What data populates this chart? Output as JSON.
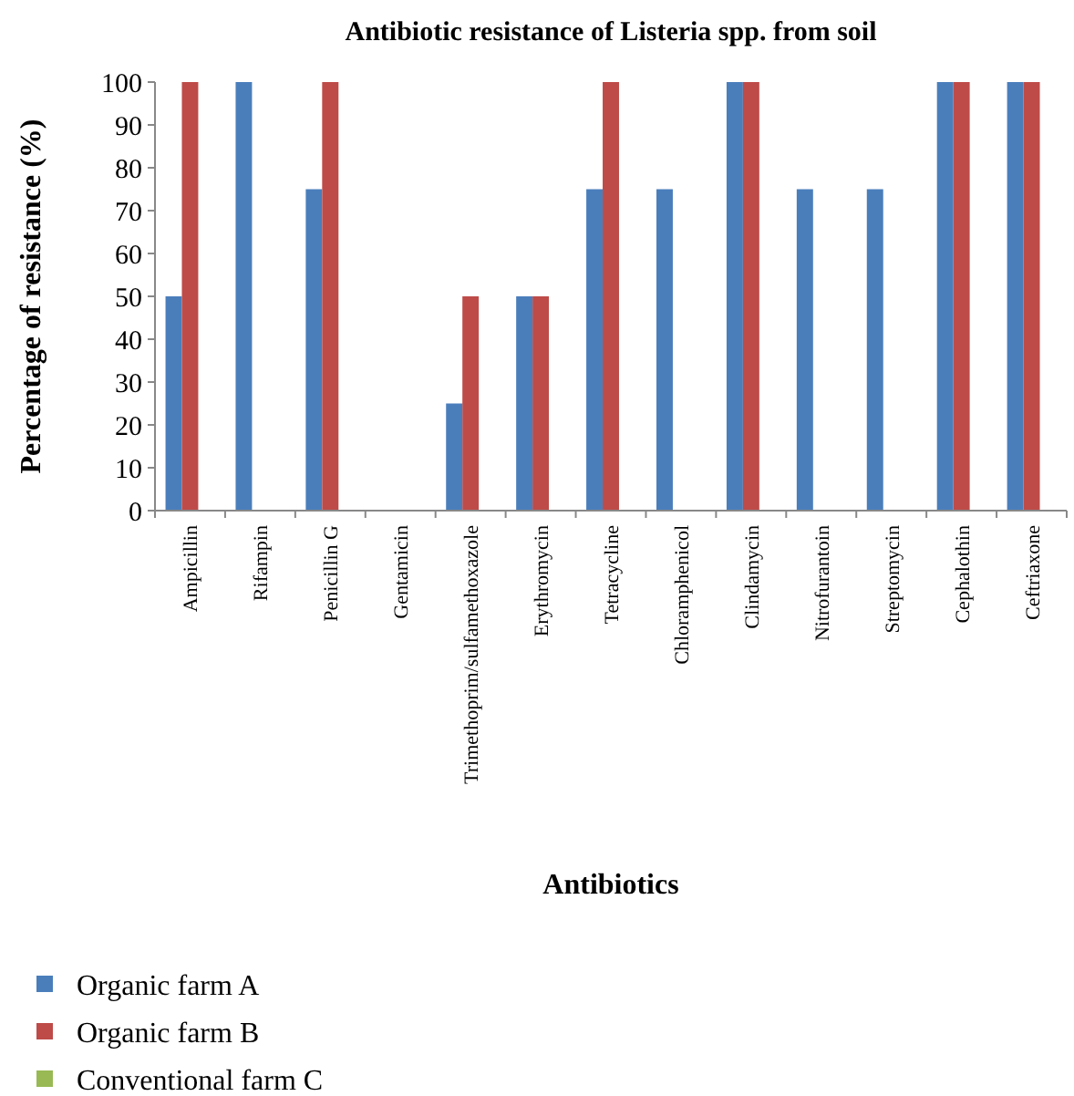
{
  "chart_data": {
    "type": "bar",
    "title": "Antibiotic resistance of Listeria spp. from soil",
    "xlabel": "Antibiotics",
    "ylabel": "Percentage of resistance (%)",
    "categories": [
      "Ampicillin",
      "Rifampin",
      "Penicillin G",
      "Gentamicin",
      "Trimethoprim/sulfamethoxazole",
      "Erythromycin",
      "Tetracycline",
      "Chloramphenicol",
      "Clindamycin",
      "Nitrofurantoin",
      "Streptomycin",
      "Cephalothin",
      "Ceftriaxone"
    ],
    "series": [
      {
        "name": "Organic farm A",
        "color": "#4a7ebb",
        "values": [
          50,
          100,
          75,
          0,
          25,
          50,
          75,
          75,
          100,
          75,
          75,
          100,
          100
        ]
      },
      {
        "name": "Organic farm B",
        "color": "#be4b48",
        "values": [
          100,
          0,
          100,
          0,
          50,
          50,
          100,
          0,
          100,
          0,
          0,
          100,
          100
        ]
      },
      {
        "name": "Conventional farm C",
        "color": "#98b954",
        "values": [
          0,
          0,
          0,
          0,
          0,
          0,
          0,
          0,
          0,
          0,
          0,
          0,
          0
        ]
      }
    ],
    "ylim": [
      0,
      100
    ],
    "yticks": [
      0,
      10,
      20,
      30,
      40,
      50,
      60,
      70,
      80,
      90,
      100
    ],
    "grid": false,
    "legend": "bottom"
  }
}
